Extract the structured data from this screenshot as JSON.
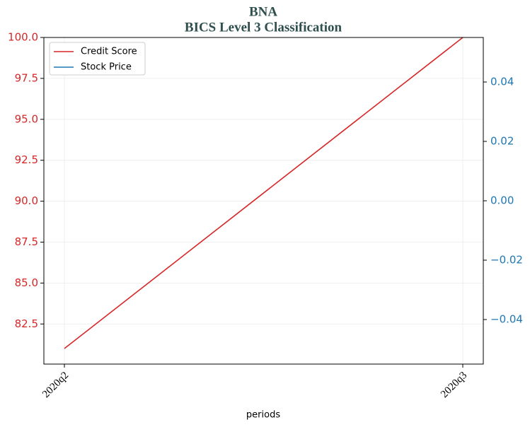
{
  "chart_data": {
    "type": "line",
    "title": "BNA",
    "subtitle": "BICS Level 3 Classification",
    "xlabel": "periods",
    "categories": [
      "2020q2",
      "2020q3"
    ],
    "series": [
      {
        "name": "Credit Score",
        "color": "#d62728",
        "values": [
          81,
          100
        ]
      },
      {
        "name": "Stock Price",
        "color": "#1f77b4",
        "values": [
          null,
          null
        ],
        "axis": "y2"
      }
    ],
    "ylim": [
      80.05,
      100
    ],
    "yticks": [
      82.5,
      {
        "value": 85,
        "label": "85.0"
      },
      87.5,
      {
        "value": 90,
        "label": "90.0"
      },
      92.5,
      {
        "value": 95,
        "label": "95.0"
      },
      97.5,
      {
        "value": 100,
        "label": "100.0"
      }
    ],
    "y2lim": [
      -0.055,
      0.055
    ],
    "y2ticks": [
      {
        "value": -0.04,
        "label": "−0.04"
      },
      {
        "value": -0.02,
        "label": "−0.02"
      },
      {
        "value": 0,
        "label": "0.00"
      },
      0.02,
      0.04
    ],
    "grid": true,
    "legend": "upper left"
  }
}
